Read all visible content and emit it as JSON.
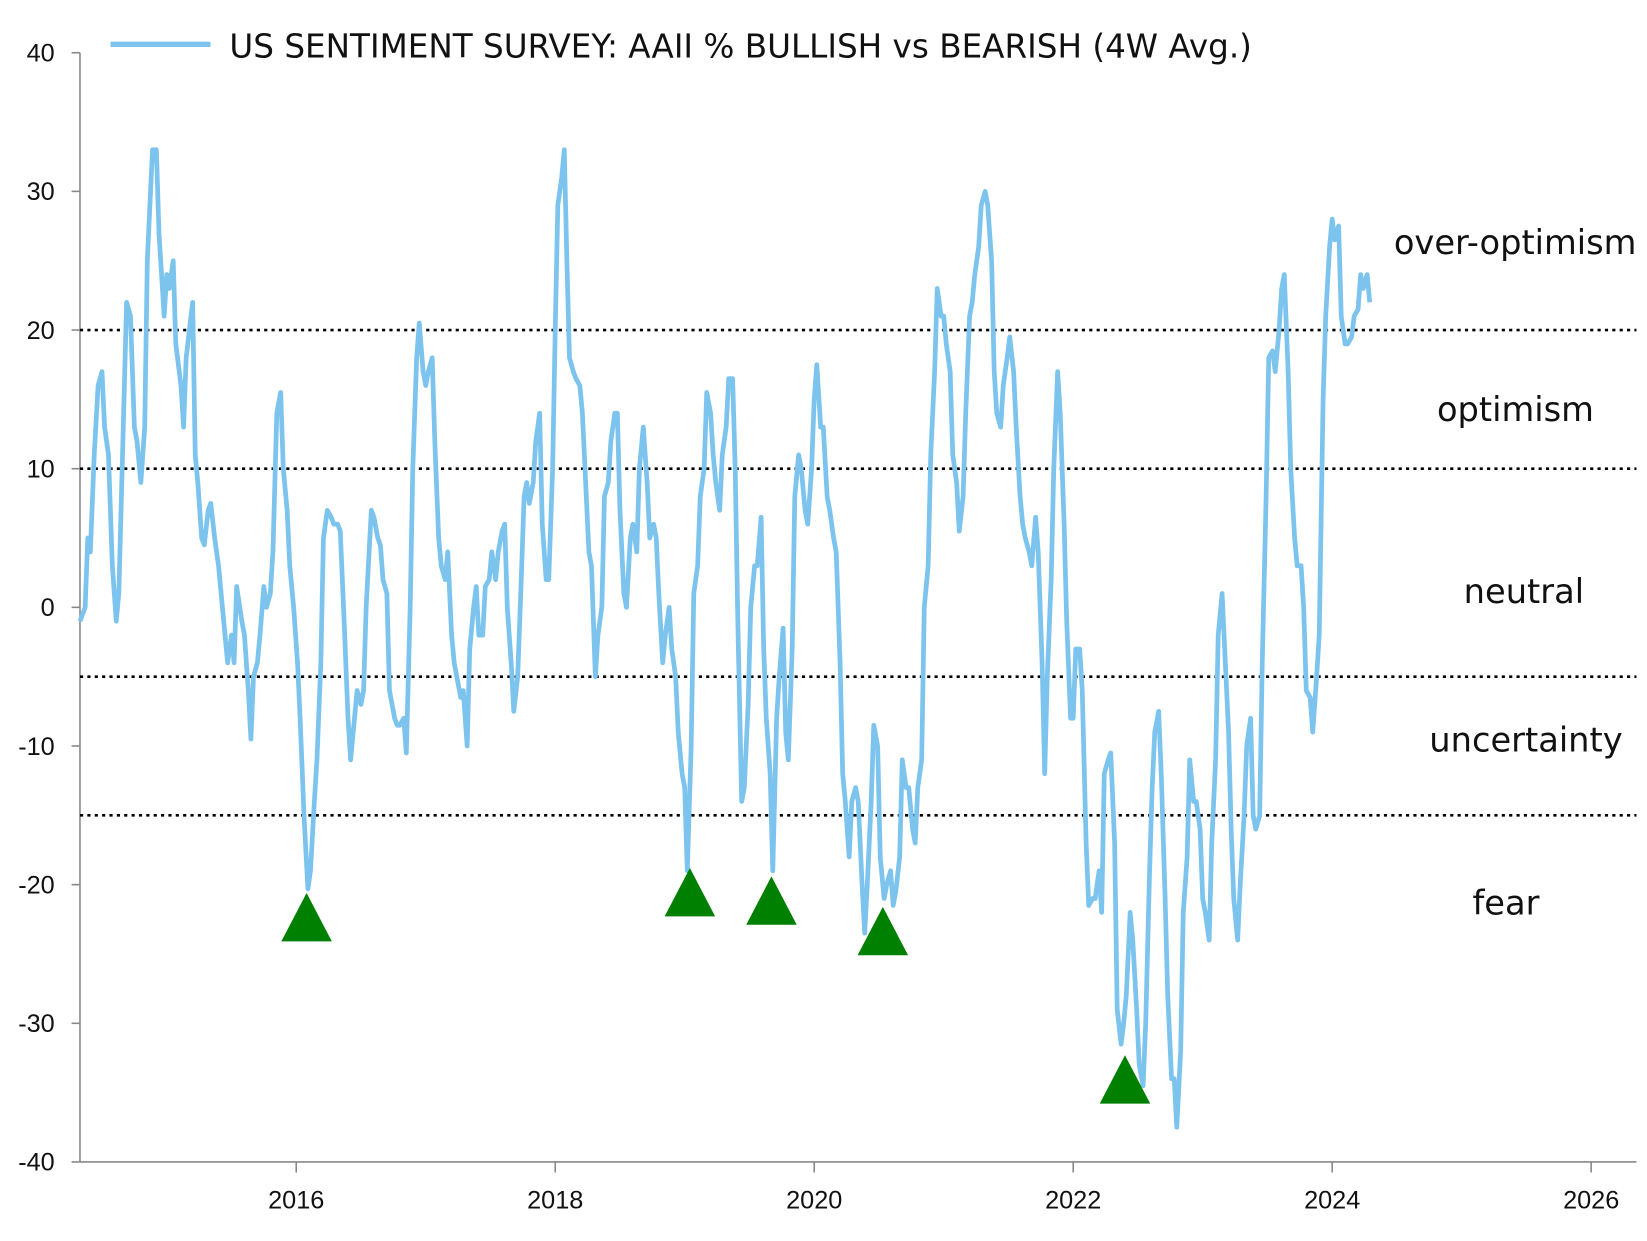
{
  "chart_data": {
    "type": "line",
    "title": "US SENTIMENT SURVEY: AAII % BULLISH vs BEARISH (4W Avg.)",
    "xlim": [
      2014.33,
      2026.35
    ],
    "xticks": [
      2016,
      2018,
      2020,
      2022,
      2024,
      2026
    ],
    "ylim": [
      -40,
      40
    ],
    "yticks": [
      -40,
      -30,
      -20,
      -10,
      0,
      10,
      20,
      30,
      40
    ],
    "reference_lines": [
      20,
      10,
      -5,
      -15
    ],
    "zones": [
      "over-optimism",
      "optimism",
      "neutral",
      "uncertainty",
      "fear"
    ],
    "markers": {
      "color": "#008000",
      "x": [
        2016.08,
        2019.04,
        2019.67,
        2020.53,
        2022.4
      ],
      "y": [
        -20.6,
        -18.8,
        -19.4,
        -21.6,
        -32.3
      ]
    },
    "series": [
      {
        "name": "US SENTIMENT SURVEY: AAII % BULLISH vs BEARISH (4W Avg.)",
        "color": "#7cc4ee",
        "x": [
          2014.33,
          2014.37,
          2014.39,
          2014.41,
          2014.44,
          2014.47,
          2014.5,
          2014.52,
          2014.55,
          2014.58,
          2014.61,
          2014.63,
          2014.67,
          2014.69,
          2014.72,
          2014.75,
          2014.77,
          2014.8,
          2014.83,
          2014.85,
          2014.89,
          2014.92,
          2014.94,
          2014.98,
          2015.0,
          2015.02,
          2015.05,
          2015.07,
          2015.11,
          2015.13,
          2015.15,
          2015.2,
          2015.22,
          2015.24,
          2015.27,
          2015.29,
          2015.32,
          2015.34,
          2015.37,
          2015.4,
          2015.42,
          2015.45,
          2015.47,
          2015.5,
          2015.52,
          2015.54,
          2015.58,
          2015.6,
          2015.63,
          2015.65,
          2015.67,
          2015.7,
          2015.72,
          2015.75,
          2015.77,
          2015.8,
          2015.82,
          2015.85,
          2015.88,
          2015.9,
          2015.93,
          2015.95,
          2015.98,
          2016.01,
          2016.03,
          2016.06,
          2016.09,
          2016.11,
          2016.14,
          2016.16,
          2016.19,
          2016.21,
          2016.24,
          2016.27,
          2016.29,
          2016.32,
          2016.34,
          2016.37,
          2016.4,
          2016.42,
          2016.45,
          2016.47,
          2016.5,
          2016.52,
          2016.54,
          2016.58,
          2016.6,
          2016.63,
          2016.65,
          2016.67,
          2016.7,
          2016.72,
          2016.76,
          2016.78,
          2016.8,
          2016.83,
          2016.85,
          2016.88,
          2016.9,
          2016.93,
          2016.95,
          2016.98,
          2017.0,
          2017.02,
          2017.05,
          2017.07,
          2017.1,
          2017.12,
          2017.15,
          2017.17,
          2017.2,
          2017.22,
          2017.24,
          2017.27,
          2017.29,
          2017.32,
          2017.34,
          2017.37,
          2017.39,
          2017.41,
          2017.44,
          2017.46,
          2017.49,
          2017.51,
          2017.54,
          2017.56,
          2017.59,
          2017.61,
          2017.63,
          2017.66,
          2017.68,
          2017.71,
          2017.73,
          2017.76,
          2017.78,
          2017.8,
          2017.83,
          2017.85,
          2017.88,
          2017.9,
          2017.93,
          2017.95,
          2017.98,
          2018.0,
          2018.02,
          2018.05,
          2018.07,
          2018.09,
          2018.11,
          2018.14,
          2018.16,
          2018.19,
          2018.21,
          2018.24,
          2018.26,
          2018.28,
          2018.31,
          2018.33,
          2018.36,
          2018.38,
          2018.41,
          2018.43,
          2018.46,
          2018.48,
          2018.5,
          2018.53,
          2018.55,
          2018.58,
          2018.6,
          2018.63,
          2018.65,
          2018.68,
          2018.71,
          2018.73,
          2018.76,
          2018.78,
          2018.8,
          2018.83,
          2018.85,
          2018.88,
          2018.9,
          2018.93,
          2018.95,
          2018.98,
          2019.0,
          2019.02,
          2019.05,
          2019.07,
          2019.1,
          2019.12,
          2019.15,
          2019.17,
          2019.2,
          2019.22,
          2019.24,
          2019.27,
          2019.29,
          2019.32,
          2019.34,
          2019.37,
          2019.39,
          2019.41,
          2019.44,
          2019.46,
          2019.49,
          2019.51,
          2019.54,
          2019.56,
          2019.59,
          2019.61,
          2019.63,
          2019.66,
          2019.68,
          2019.71,
          2019.73,
          2019.76,
          2019.78,
          2019.8,
          2019.83,
          2019.85,
          2019.88,
          2019.9,
          2019.93,
          2019.95,
          2019.98,
          2020.0,
          2020.02,
          2020.05,
          2020.07,
          2020.1,
          2020.12,
          2020.15,
          2020.17,
          2020.2,
          2020.22,
          2020.24,
          2020.27,
          2020.29,
          2020.32,
          2020.34,
          2020.37,
          2020.39,
          2020.41,
          2020.44,
          2020.46,
          2020.49,
          2020.51,
          2020.54,
          2020.56,
          2020.59,
          2020.61,
          2020.63,
          2020.66,
          2020.68,
          2020.71,
          2020.73,
          2020.76,
          2020.78,
          2020.8,
          2020.83,
          2020.85,
          2020.88,
          2020.9,
          2020.93,
          2020.95,
          2020.98,
          2021.0,
          2021.02,
          2021.05,
          2021.07,
          2021.1,
          2021.12,
          2021.15,
          2021.17,
          2021.2,
          2021.22,
          2021.24,
          2021.27,
          2021.29,
          2021.32,
          2021.34,
          2021.37,
          2021.39,
          2021.41,
          2021.44,
          2021.46,
          2021.49,
          2021.51,
          2021.54,
          2021.56,
          2021.59,
          2021.61,
          2021.63,
          2021.66,
          2021.68,
          2021.71,
          2021.73,
          2021.76,
          2021.78,
          2021.8,
          2021.83,
          2021.85,
          2021.88,
          2021.9,
          2021.93,
          2021.95,
          2021.98,
          2022.0,
          2022.02,
          2022.05,
          2022.07,
          2022.1,
          2022.12,
          2022.15,
          2022.17,
          2022.2,
          2022.22,
          2022.24,
          2022.27,
          2022.29,
          2022.32,
          2022.34,
          2022.37,
          2022.39,
          2022.41,
          2022.44,
          2022.46,
          2022.49,
          2022.51,
          2022.54,
          2022.56,
          2022.59,
          2022.61,
          2022.63,
          2022.66,
          2022.68,
          2022.71,
          2022.73,
          2022.76,
          2022.78,
          2022.8,
          2022.83,
          2022.85,
          2022.88,
          2022.9,
          2022.93,
          2022.95,
          2022.98,
          2023.0,
          2023.02,
          2023.05,
          2023.07,
          2023.1,
          2023.12,
          2023.15,
          2023.17,
          2023.2,
          2023.22,
          2023.24,
          2023.27,
          2023.29,
          2023.32,
          2023.34,
          2023.37,
          2023.39,
          2023.41,
          2023.44,
          2023.46,
          2023.49,
          2023.51,
          2023.54,
          2023.56,
          2023.59,
          2023.61,
          2023.63,
          2023.66,
          2023.68,
          2023.71,
          2023.73,
          2023.76,
          2023.78,
          2023.8,
          2023.83,
          2023.85,
          2023.88,
          2023.9,
          2023.93,
          2023.95,
          2023.98,
          2024.0,
          2024.02,
          2024.05,
          2024.07,
          2024.1,
          2024.12,
          2024.15,
          2024.17,
          2024.2,
          2024.22,
          2024.24,
          2024.27,
          2024.29
        ],
        "values": [
          -1,
          0,
          5,
          4,
          11,
          16,
          17,
          13,
          11,
          3,
          -1,
          1,
          15,
          22,
          21,
          13,
          12,
          9,
          13,
          25,
          33,
          33,
          27,
          21,
          24,
          23,
          25,
          19,
          16,
          13,
          18,
          22,
          11,
          9,
          5,
          4.5,
          7,
          7.5,
          5,
          3,
          1,
          -2,
          -4,
          -2,
          -4,
          1.5,
          -1,
          -2,
          -6,
          -9.5,
          -5,
          -4,
          -2,
          1.5,
          0,
          1,
          4,
          14,
          15.5,
          10,
          7,
          3,
          0,
          -4,
          -8,
          -15,
          -20.3,
          -19,
          -14,
          -11,
          -4,
          5,
          7,
          6.5,
          6,
          6,
          5.5,
          -1,
          -8,
          -11,
          -8,
          -6,
          -7,
          -6,
          0,
          7,
          6.5,
          5,
          4.5,
          2,
          1,
          -6,
          -8,
          -8.5,
          -8.5,
          -8,
          -10.5,
          0,
          10,
          18,
          20.5,
          17,
          16,
          17,
          18,
          12,
          5,
          3,
          2,
          4,
          -2,
          -4,
          -5,
          -6.5,
          -6,
          -10,
          -3,
          0,
          1.5,
          -2,
          -2,
          1.5,
          2,
          4,
          2,
          4,
          5.5,
          6,
          0,
          -4,
          -7.5,
          -5,
          0,
          8,
          9,
          7.5,
          9,
          12,
          14,
          6,
          2,
          2,
          10,
          20,
          29,
          31,
          33,
          25,
          18,
          17,
          16.5,
          16,
          14,
          8,
          4,
          3,
          -5,
          -2,
          0,
          8,
          9,
          12,
          14,
          14,
          7,
          1,
          0,
          5,
          6,
          4,
          10,
          13,
          9,
          5,
          6,
          5,
          1,
          -4,
          -2,
          0,
          -3,
          -5,
          -9,
          -12,
          -13,
          -19,
          -10,
          1,
          3,
          8,
          10,
          15.5,
          14,
          11,
          9,
          7,
          11,
          13,
          16.5,
          16.5,
          10,
          -1,
          -14,
          -13,
          -7,
          0,
          3,
          3,
          6.5,
          -3,
          -8,
          -12,
          -19,
          -8,
          -5,
          -1.5,
          -9,
          -11,
          -3,
          8,
          11,
          10,
          7,
          6,
          10,
          15,
          17.5,
          13,
          13,
          8,
          7,
          5,
          4,
          -4,
          -12,
          -14,
          -18,
          -14,
          -13,
          -14,
          -20,
          -23.5,
          -20,
          -14,
          -8.5,
          -10,
          -18,
          -21,
          -20,
          -19,
          -21.5,
          -20.5,
          -18,
          -11,
          -13,
          -13,
          -16,
          -17,
          -13,
          -11,
          0,
          3,
          11,
          17,
          23,
          21,
          21,
          19,
          17,
          11,
          9,
          5.5,
          8,
          14,
          21,
          22,
          24,
          26,
          29,
          30,
          29,
          25,
          17,
          14,
          13,
          16,
          18,
          19.5,
          17,
          13,
          8,
          6,
          5,
          4,
          3,
          6.5,
          4,
          -4,
          -12,
          -5,
          2,
          10,
          17,
          14,
          6,
          -1,
          -8,
          -8,
          -3,
          -3,
          -6,
          -17,
          -21.5,
          -21,
          -21,
          -19,
          -22,
          -12,
          -11,
          -10.5,
          -17,
          -29,
          -31.5,
          -30,
          -28,
          -22,
          -24,
          -29,
          -33,
          -34.5,
          -30,
          -19,
          -13,
          -9,
          -7.5,
          -12,
          -21,
          -28,
          -34,
          -34,
          -37.5,
          -32,
          -22,
          -18,
          -11,
          -14,
          -14,
          -16,
          -21,
          -22,
          -24,
          -17,
          -11,
          -2,
          1,
          -3,
          -9,
          -16,
          -21,
          -24,
          -20,
          -15,
          -10,
          -8,
          -15,
          -16,
          -15,
          -4,
          8,
          18,
          18.5,
          17,
          20,
          23,
          24,
          17,
          10,
          5,
          3,
          3,
          0,
          -6,
          -6.5,
          -9,
          -5,
          -2,
          15,
          21,
          26,
          28,
          26.5,
          27.5,
          21,
          19,
          19,
          19.5,
          21,
          21.5,
          24,
          23,
          24,
          22
        ]
      }
    ]
  }
}
